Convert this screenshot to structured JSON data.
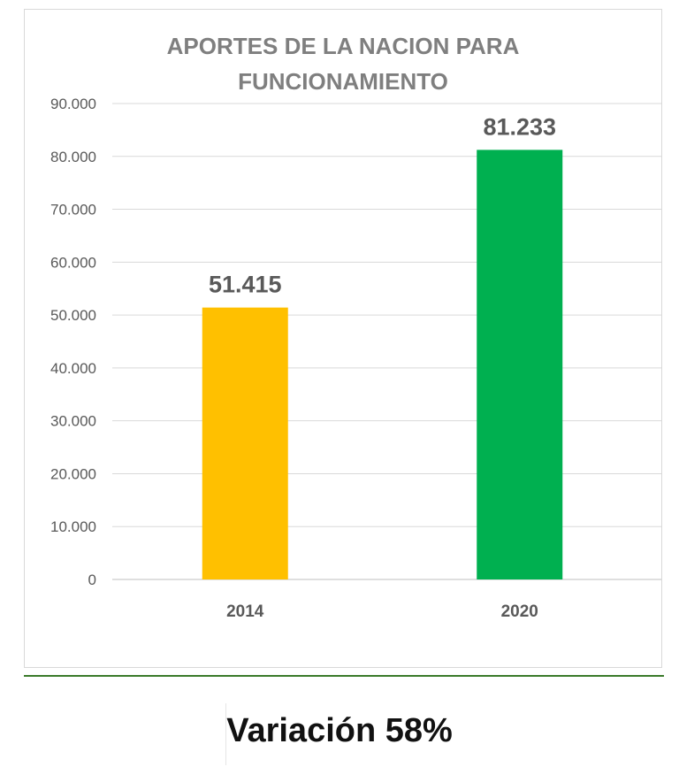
{
  "chart_data": {
    "type": "bar",
    "title_lines": [
      "APORTES DE LA NACION PARA",
      "FUNCIONAMIENTO"
    ],
    "categories": [
      "2014",
      "2020"
    ],
    "values": [
      51415,
      81233
    ],
    "value_labels": [
      "51.415",
      "81.233"
    ],
    "bar_colors": [
      "#FFC000",
      "#00B050"
    ],
    "ylim": [
      0,
      90000
    ],
    "yticks": [
      0,
      10000,
      20000,
      30000,
      40000,
      50000,
      60000,
      70000,
      80000,
      90000
    ],
    "ytick_labels": [
      "0",
      "10.000",
      "20.000",
      "30.000",
      "40.000",
      "50.000",
      "60.000",
      "70.000",
      "80.000",
      "90.000"
    ],
    "grid": true,
    "xlabel": "",
    "ylabel": ""
  },
  "footer": {
    "variation_text": "Variación 58%"
  }
}
